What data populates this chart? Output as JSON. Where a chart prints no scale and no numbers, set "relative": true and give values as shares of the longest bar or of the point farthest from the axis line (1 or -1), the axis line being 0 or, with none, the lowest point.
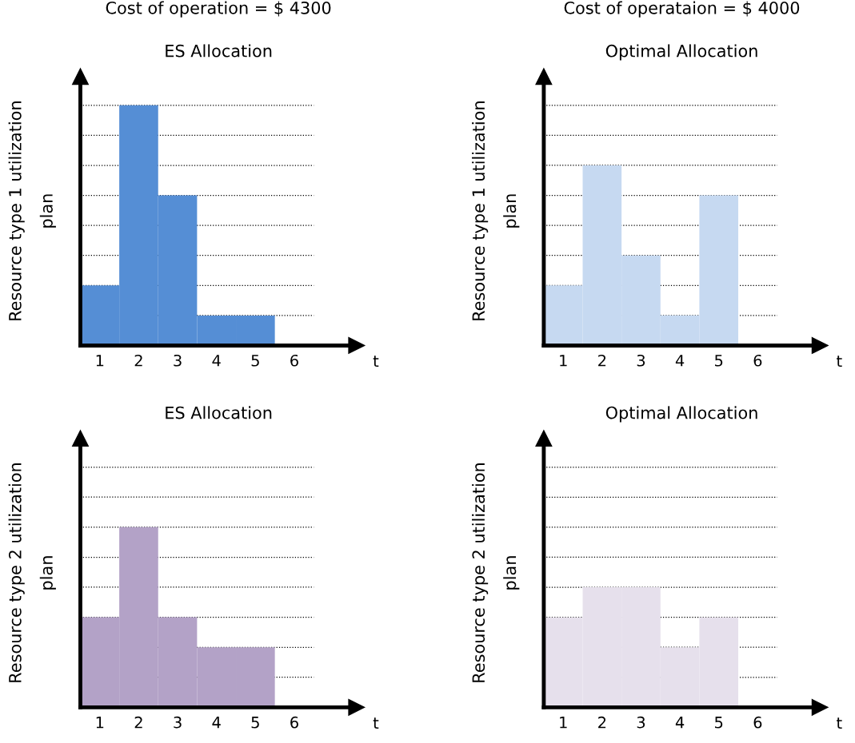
{
  "chart_data": [
    {
      "type": "bar",
      "title": "Cost of operation = $ 4300",
      "subtitle": "ES Allocation",
      "ylabel": "Resource type 1 utilization\nplan",
      "xlabel": "t",
      "relative": true,
      "categories": [
        "1",
        "2",
        "3",
        "4",
        "5",
        "6"
      ],
      "values": [
        0.25,
        1,
        0.625,
        0.125,
        0.125,
        0
      ],
      "color": "#558ed5",
      "line_style": "dotted",
      "ref_lines": [
        {
          "axis": "y",
          "value": 0.125
        },
        {
          "axis": "y",
          "value": 0.25
        },
        {
          "axis": "y",
          "value": 0.375
        },
        {
          "axis": "y",
          "value": 0.5
        },
        {
          "axis": "y",
          "value": 0.625
        },
        {
          "axis": "y",
          "value": 0.75
        },
        {
          "axis": "y",
          "value": 0.875
        },
        {
          "axis": "y",
          "value": 1
        }
      ]
    },
    {
      "type": "bar",
      "title": "Cost of operataion = $ 4000",
      "subtitle": "Optimal Allocation",
      "ylabel": "Resource type 1 utilization\nplan",
      "xlabel": "t",
      "relative": true,
      "categories": [
        "1",
        "2",
        "3",
        "4",
        "5",
        "6"
      ],
      "values": [
        0.333,
        1,
        0.5,
        0.167,
        0.833,
        0
      ],
      "color": "#c6d9f1",
      "line_style": "dotted",
      "ref_lines": [
        {
          "axis": "y",
          "value": 0.167
        },
        {
          "axis": "y",
          "value": 0.333
        },
        {
          "axis": "y",
          "value": 0.5
        },
        {
          "axis": "y",
          "value": 0.667
        },
        {
          "axis": "y",
          "value": 0.833
        },
        {
          "axis": "y",
          "value": 1
        },
        {
          "axis": "y",
          "value": 1.167
        },
        {
          "axis": "y",
          "value": 1.333
        }
      ]
    },
    {
      "type": "bar",
      "title": "ES Allocation",
      "ylabel": "Resource type 2 utilization\nplan",
      "xlabel": "t",
      "relative": true,
      "categories": [
        "1",
        "2",
        "3",
        "4",
        "5",
        "6"
      ],
      "values": [
        0.5,
        1,
        0.5,
        0.333,
        0.333,
        0
      ],
      "color": "#b3a2c7",
      "line_style": "dotted",
      "ref_lines": [
        {
          "axis": "y",
          "value": 0.167
        },
        {
          "axis": "y",
          "value": 0.333
        },
        {
          "axis": "y",
          "value": 0.5
        },
        {
          "axis": "y",
          "value": 0.667
        },
        {
          "axis": "y",
          "value": 0.833
        },
        {
          "axis": "y",
          "value": 1
        },
        {
          "axis": "y",
          "value": 1.167
        },
        {
          "axis": "y",
          "value": 1.333
        }
      ]
    },
    {
      "type": "bar",
      "title": "Optimal Allocation",
      "ylabel": "Resource type 2 utilization\nplan",
      "xlabel": "t",
      "relative": true,
      "categories": [
        "1",
        "2",
        "3",
        "4",
        "5",
        "6"
      ],
      "values": [
        0.75,
        1,
        1,
        0.5,
        0.75,
        0
      ],
      "color": "#e6e0ec",
      "line_style": "dotted",
      "ref_lines": [
        {
          "axis": "y",
          "value": 0.25
        },
        {
          "axis": "y",
          "value": 0.5
        },
        {
          "axis": "y",
          "value": 0.75
        },
        {
          "axis": "y",
          "value": 1
        },
        {
          "axis": "y",
          "value": 1.25
        },
        {
          "axis": "y",
          "value": 1.5
        },
        {
          "axis": "y",
          "value": 1.75
        },
        {
          "axis": "y",
          "value": 2
        }
      ]
    }
  ]
}
